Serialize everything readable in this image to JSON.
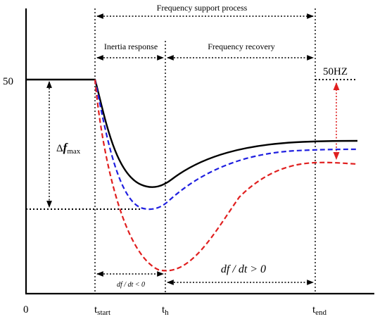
{
  "labels": {
    "frequency_support": "Frequency support process",
    "inertia_response": "Inertia response",
    "frequency_recovery": "Frequency recovery",
    "nominal": "50HZ",
    "y_tick_50": "50",
    "x_origin": "0",
    "delta_prefix": "Δ",
    "delta_f": "f",
    "delta_sub": "max",
    "t": "t",
    "t_start_sub": "start",
    "t_h_sub": "h",
    "t_end_sub": "end",
    "dfdt_neg": "df / dt < 0",
    "dfdt_pos": "df / dt > 0"
  },
  "colors": {
    "black_curve": "#000000",
    "blue_curve": "#1f1fe0",
    "red_curve": "#e01f1f",
    "red_arrow": "#e01f1f"
  }
}
